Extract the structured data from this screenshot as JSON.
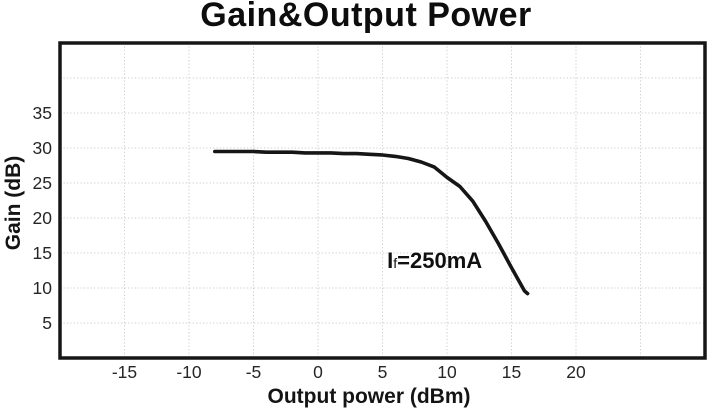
{
  "title": "Gain&Output Power",
  "colors": {
    "background": "#ffffff",
    "curve": "#161616",
    "border": "#161616",
    "grid": "#d2d2d2",
    "label_text": "#141414",
    "tick_text": "#262626"
  },
  "chart_data": {
    "type": "line",
    "title": "Gain&Output Power",
    "xlabel": "Output power (dBm)",
    "ylabel": "Gain (dB)",
    "xlim": [
      -20,
      30
    ],
    "ylim": [
      0,
      45
    ],
    "grid": true,
    "grid_step": 5,
    "xticks": [
      -15,
      -10,
      -5,
      0,
      5,
      10,
      15,
      20
    ],
    "yticks": [
      5,
      10,
      15,
      20,
      25,
      30,
      35
    ],
    "series": [
      {
        "name": "If=250mA",
        "points": [
          [
            -8,
            29.5
          ],
          [
            -7,
            29.5
          ],
          [
            -6,
            29.5
          ],
          [
            -5,
            29.5
          ],
          [
            -4,
            29.4
          ],
          [
            -3,
            29.4
          ],
          [
            -2,
            29.4
          ],
          [
            -1,
            29.3
          ],
          [
            0,
            29.3
          ],
          [
            1,
            29.3
          ],
          [
            2,
            29.2
          ],
          [
            3,
            29.2
          ],
          [
            4,
            29.1
          ],
          [
            5,
            29.0
          ],
          [
            6,
            28.8
          ],
          [
            7,
            28.5
          ],
          [
            8,
            28.0
          ],
          [
            9,
            27.3
          ],
          [
            10,
            25.8
          ],
          [
            11,
            24.5
          ],
          [
            12,
            22.4
          ],
          [
            13,
            19.5
          ],
          [
            14,
            16.3
          ],
          [
            15,
            12.9
          ],
          [
            16,
            9.6
          ],
          [
            16.25,
            9.2
          ]
        ]
      }
    ],
    "annotation": {
      "pre": "I",
      "sub": "f",
      "post": "=250mA",
      "x": 5.36,
      "y": 15.43
    }
  }
}
